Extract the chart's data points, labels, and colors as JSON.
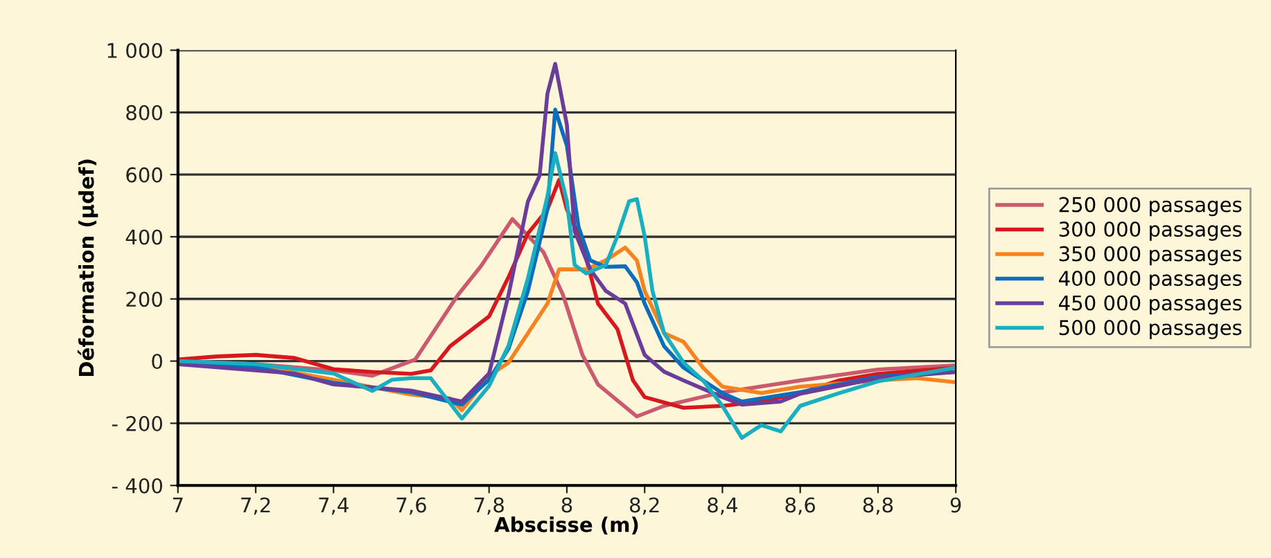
{
  "chart_data": {
    "type": "line",
    "xlabel": "Abscisse (m)",
    "ylabel": "Déformation (µdef)",
    "xlim": [
      7,
      9
    ],
    "xticks": [
      7,
      {
        "value": 7.2,
        "label": "7,2"
      },
      {
        "value": 7.4,
        "label": "7,4"
      },
      {
        "value": 7.6,
        "label": "7,6"
      },
      {
        "value": 7.8,
        "label": "7,8"
      },
      8,
      {
        "value": 8.2,
        "label": "8,2"
      },
      {
        "value": 8.4,
        "label": "8,4"
      },
      {
        "value": 8.6,
        "label": "8,6"
      },
      {
        "value": 8.8,
        "label": "8,8"
      },
      9
    ],
    "ylim": [
      -400,
      1000
    ],
    "yticks": [
      {
        "value": -400,
        "label": "- 400"
      },
      {
        "value": -200,
        "label": "- 200"
      },
      0,
      200,
      400,
      600,
      800,
      {
        "value": 1000,
        "label": "1 000"
      }
    ],
    "grid": "y",
    "legend": "right",
    "marker": "none",
    "line_style": "solid",
    "series": [
      {
        "name": "250 000 passages",
        "color": "#cc5a6e",
        "x": [
          7,
          7.2,
          7.4,
          7.5,
          7.61,
          7.72,
          7.78,
          7.86,
          7.94,
          7.99,
          8.04,
          8.08,
          8.18,
          8.25,
          8.39,
          8.6,
          8.8,
          9
        ],
        "values": [
          0,
          -10,
          -30,
          -47,
          5,
          213,
          307,
          457,
          350,
          213,
          20,
          -75,
          -178,
          -144,
          -103,
          -62,
          -27,
          -14
        ]
      },
      {
        "name": "300 000 passages",
        "color": "#d7191f",
        "x": [
          7,
          7.1,
          7.2,
          7.3,
          7.4,
          7.5,
          7.6,
          7.65,
          7.7,
          7.8,
          7.85,
          7.9,
          7.95,
          7.98,
          8.0,
          8.04,
          8.08,
          8.13,
          8.17,
          8.2,
          8.3,
          8.4,
          8.5,
          8.6,
          8.7,
          8.8,
          9
        ],
        "values": [
          5,
          15,
          20,
          10,
          -26,
          -35,
          -41,
          -30,
          48,
          144,
          270,
          411,
          488,
          583,
          488,
          377,
          185,
          103,
          -62,
          -116,
          -150,
          -144,
          -130,
          -103,
          -62,
          -41,
          -21
        ]
      },
      {
        "name": "350 000 passages",
        "color": "#f68220",
        "x": [
          7,
          7.2,
          7.4,
          7.6,
          7.7,
          7.73,
          7.8,
          7.85,
          7.9,
          7.95,
          7.98,
          8.0,
          8.05,
          8.1,
          8.15,
          8.18,
          8.2,
          8.25,
          8.3,
          8.35,
          8.4,
          8.5,
          8.6,
          8.8,
          8.9,
          9
        ],
        "values": [
          -10,
          -15,
          -60,
          -108,
          -120,
          -158,
          -47,
          -5,
          90,
          185,
          295,
          295,
          295,
          324,
          365,
          324,
          226,
          90,
          62,
          -21,
          -82,
          -103,
          -82,
          -62,
          -55,
          -68
        ]
      },
      {
        "name": "400 000 passages",
        "color": "#0a6ebd",
        "x": [
          7,
          7.2,
          7.4,
          7.5,
          7.6,
          7.73,
          7.8,
          7.85,
          7.9,
          7.95,
          7.97,
          8.0,
          8.03,
          8.06,
          8.1,
          8.15,
          8.18,
          8.2,
          8.25,
          8.3,
          8.35,
          8.4,
          8.45,
          8.5,
          8.6,
          8.7,
          8.8,
          9
        ],
        "values": [
          -10,
          -20,
          -70,
          -85,
          -100,
          -140,
          -60,
          40,
          226,
          488,
          809,
          693,
          432,
          324,
          303,
          305,
          254,
          185,
          48,
          -21,
          -62,
          -103,
          -130,
          -120,
          -100,
          -75,
          -50,
          -35
        ]
      },
      {
        "name": "450 000 passages",
        "color": "#6a3d9a",
        "x": [
          7,
          7.2,
          7.3,
          7.4,
          7.5,
          7.6,
          7.73,
          7.8,
          7.85,
          7.9,
          7.93,
          7.95,
          7.97,
          8.0,
          8.02,
          8.06,
          8.1,
          8.15,
          8.2,
          8.25,
          8.3,
          8.4,
          8.45,
          8.5,
          8.55,
          8.6,
          8.7,
          8.8,
          9
        ],
        "values": [
          -10,
          -30,
          -40,
          -75,
          -85,
          -95,
          -130,
          -40,
          213,
          514,
          597,
          860,
          956,
          761,
          418,
          295,
          226,
          185,
          20,
          -34,
          -62,
          -116,
          -140,
          -135,
          -130,
          -105,
          -80,
          -55,
          -35
        ]
      },
      {
        "name": "500 000 passages",
        "color": "#1aafc0",
        "x": [
          7,
          7.2,
          7.4,
          7.5,
          7.55,
          7.6,
          7.65,
          7.73,
          7.8,
          7.85,
          7.9,
          7.95,
          7.97,
          8.0,
          8.02,
          8.05,
          8.1,
          8.13,
          8.16,
          8.18,
          8.2,
          8.22,
          8.25,
          8.3,
          8.35,
          8.4,
          8.45,
          8.5,
          8.55,
          8.6,
          8.7,
          8.8,
          9
        ],
        "values": [
          0,
          -10,
          -40,
          -96,
          -60,
          -55,
          -55,
          -185,
          -80,
          50,
          267,
          530,
          669,
          514,
          309,
          282,
          309,
          402,
          514,
          521,
          402,
          226,
          90,
          -5,
          -62,
          -144,
          -247,
          -206,
          -226,
          -144,
          -103,
          -65,
          -21
        ]
      }
    ]
  }
}
